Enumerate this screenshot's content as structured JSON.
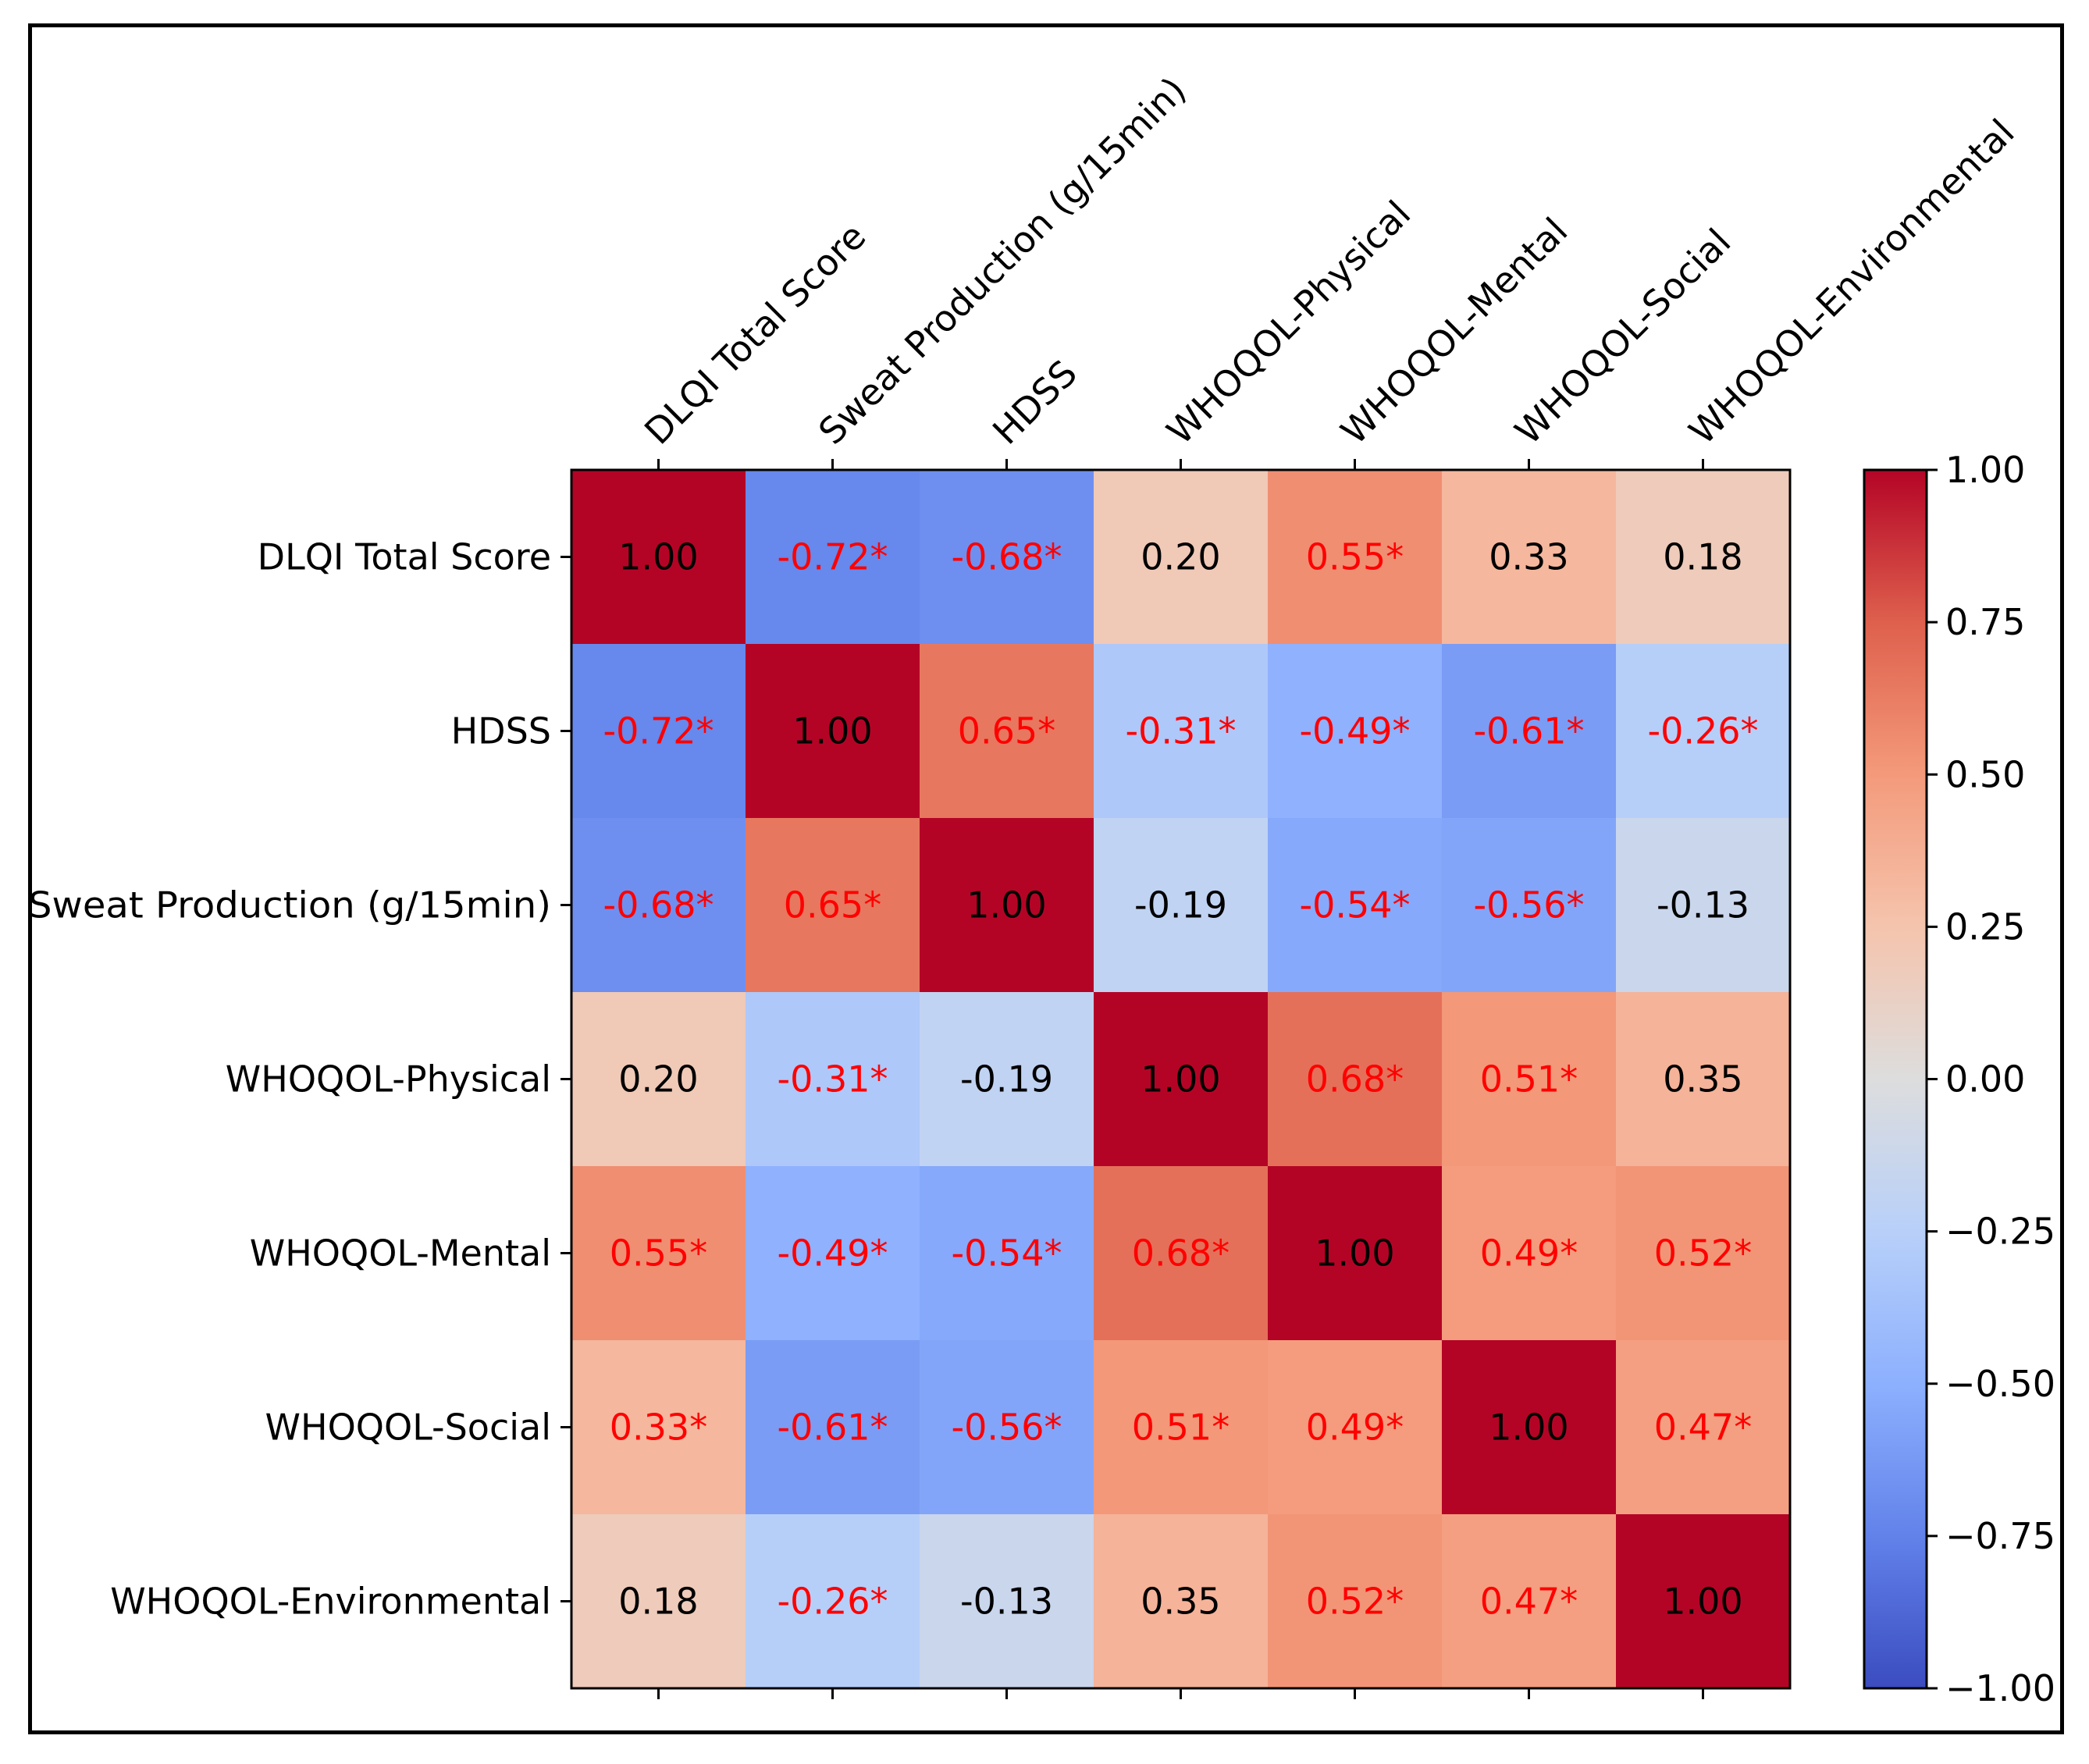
{
  "chart_data": {
    "type": "heatmap",
    "colormap": "coolwarm",
    "x_labels": [
      "DLQI Total Score",
      "Sweat Production (g/15min)",
      "HDSS",
      "WHOQOL-Physical",
      "WHOQOL-Mental",
      "WHOQOL-Social",
      "WHOQOL-Environmental"
    ],
    "y_labels": [
      "DLQI Total Score",
      "HDSS",
      "Sweat Production (g/15min)",
      "WHOQOL-Physical",
      "WHOQOL-Mental",
      "WHOQOL-Social",
      "WHOQOL-Environmental"
    ],
    "values": [
      [
        1.0,
        -0.72,
        -0.68,
        0.2,
        0.55,
        0.33,
        0.18
      ],
      [
        -0.72,
        1.0,
        0.65,
        -0.31,
        -0.49,
        -0.61,
        -0.26
      ],
      [
        -0.68,
        0.65,
        1.0,
        -0.19,
        -0.54,
        -0.56,
        -0.13
      ],
      [
        0.2,
        -0.31,
        -0.19,
        1.0,
        0.68,
        0.51,
        0.35
      ],
      [
        0.55,
        -0.49,
        -0.54,
        0.68,
        1.0,
        0.49,
        0.52
      ],
      [
        0.33,
        -0.61,
        -0.56,
        0.51,
        0.49,
        1.0,
        0.47
      ],
      [
        0.18,
        -0.26,
        -0.13,
        0.35,
        0.52,
        0.47,
        1.0
      ]
    ],
    "cell_labels": [
      [
        "1.00",
        "-0.72*",
        "-0.68*",
        "0.20",
        "0.55*",
        "0.33",
        "0.18"
      ],
      [
        "-0.72*",
        "1.00",
        "0.65*",
        "-0.31*",
        "-0.49*",
        "-0.61*",
        "-0.26*"
      ],
      [
        "-0.68*",
        "0.65*",
        "1.00",
        "-0.19",
        "-0.54*",
        "-0.56*",
        "-0.13"
      ],
      [
        "0.20",
        "-0.31*",
        "-0.19",
        "1.00",
        "0.68*",
        "0.51*",
        "0.35"
      ],
      [
        "0.55*",
        "-0.49*",
        "-0.54*",
        "0.68*",
        "1.00",
        "0.49*",
        "0.52*"
      ],
      [
        "0.33*",
        "-0.61*",
        "-0.56*",
        "0.51*",
        "0.49*",
        "1.00",
        "0.47*"
      ],
      [
        "0.18",
        "-0.26*",
        "-0.13",
        "0.35",
        "0.52*",
        "0.47*",
        "1.00"
      ]
    ],
    "significant_color": "#ff0000",
    "normal_color": "#000000",
    "vmin": -1.0,
    "vmax": 1.0,
    "colorbar_ticks": [
      1.0,
      0.75,
      0.5,
      0.25,
      0.0,
      -0.25,
      -0.5,
      -0.75,
      -1.0
    ],
    "colorbar_tick_labels": [
      "1.00",
      "0.75",
      "0.50",
      "0.25",
      "0.00",
      "−0.25",
      "−0.50",
      "−0.75",
      "−1.00"
    ]
  }
}
